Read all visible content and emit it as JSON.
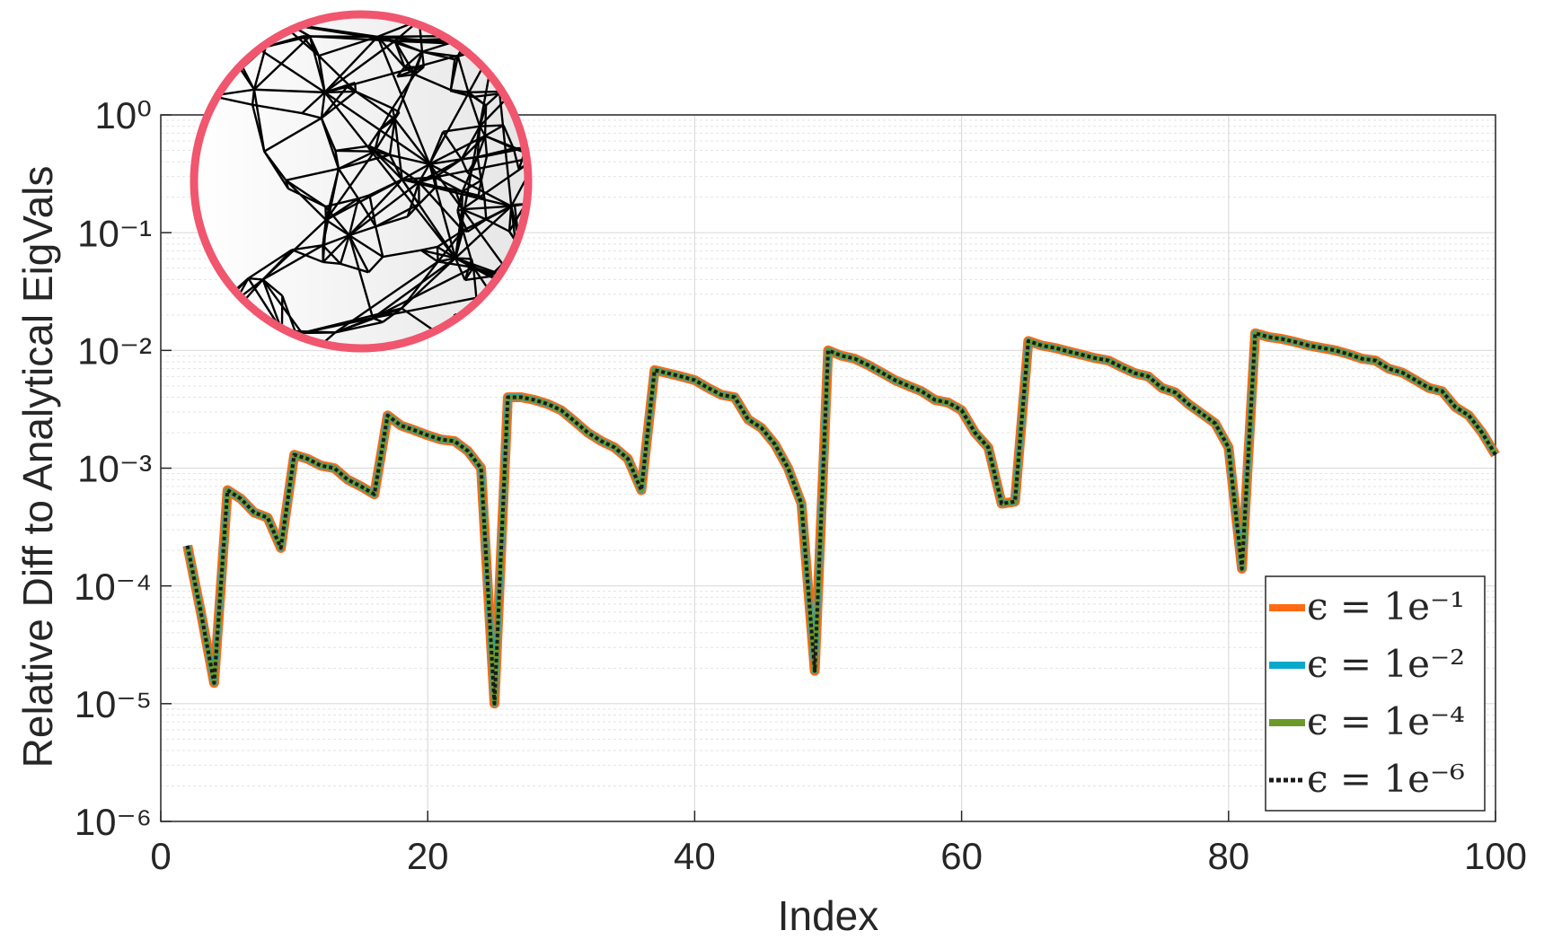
{
  "chart_data": {
    "type": "line",
    "xlabel": "Index",
    "ylabel": "Relative Diff to Analytical EigVals",
    "xlim": [
      0,
      100
    ],
    "xticks": [
      0,
      20,
      40,
      60,
      80,
      100
    ],
    "ylim": [
      1e-06,
      1
    ],
    "log_y": true,
    "grid": true,
    "legend": "lower right",
    "yticks": [
      {
        "value": 1e-06,
        "label": "10⁻⁶"
      },
      {
        "value": 1e-05,
        "label": "10⁻⁵"
      },
      {
        "value": 0.0001,
        "label": "10⁻⁴"
      },
      {
        "value": 0.001,
        "label": "10⁻³"
      },
      {
        "value": 0.01,
        "label": "10⁻²"
      },
      {
        "value": 0.1,
        "label": "10⁻¹"
      },
      {
        "value": 1,
        "label": "10⁰"
      }
    ],
    "x": [
      2,
      3,
      4,
      5,
      6,
      7,
      8,
      9,
      10,
      11,
      12,
      13,
      14,
      15,
      16,
      17,
      18,
      19,
      20,
      21,
      22,
      23,
      24,
      25,
      26,
      27,
      28,
      29,
      30,
      31,
      32,
      33,
      34,
      35,
      36,
      37,
      38,
      39,
      40,
      41,
      42,
      43,
      44,
      45,
      46,
      47,
      48,
      49,
      50,
      51,
      52,
      53,
      54,
      55,
      56,
      57,
      58,
      59,
      60,
      61,
      62,
      63,
      64,
      65,
      66,
      67,
      68,
      69,
      70,
      71,
      72,
      73,
      74,
      75,
      76,
      77,
      78,
      79,
      80,
      81,
      82,
      83,
      84,
      85,
      86,
      87,
      88,
      89,
      90,
      91,
      92,
      93,
      94,
      95,
      96,
      97,
      98,
      99,
      100
    ],
    "series": [
      {
        "name": "ϵ = 1e⁻¹",
        "color": "#ff6a13",
        "values": [
          0.00022,
          6e-05,
          1.5e-05,
          0.00065,
          0.00055,
          0.00042,
          0.00038,
          0.00021,
          0.0013,
          0.0012,
          0.00105,
          0.001,
          0.0008,
          0.0007,
          0.0006,
          0.0028,
          0.0023,
          0.0021,
          0.0019,
          0.00175,
          0.0017,
          0.0014,
          0.001,
          1e-05,
          0.004,
          0.004,
          0.0038,
          0.0035,
          0.0031,
          0.0025,
          0.002,
          0.0017,
          0.0015,
          0.0012,
          0.00065,
          0.0068,
          0.0064,
          0.006,
          0.0056,
          0.0048,
          0.0042,
          0.004,
          0.0026,
          0.0022,
          0.0016,
          0.001,
          0.0005,
          1.9e-05,
          0.01,
          0.009,
          0.0085,
          0.0075,
          0.0065,
          0.0056,
          0.005,
          0.0045,
          0.0038,
          0.0036,
          0.0031,
          0.002,
          0.0015,
          0.0005,
          0.00052,
          0.012,
          0.011,
          0.0105,
          0.0098,
          0.0092,
          0.0086,
          0.0082,
          0.0072,
          0.0064,
          0.006,
          0.0048,
          0.0044,
          0.0035,
          0.0029,
          0.0024,
          0.0015,
          0.00014,
          0.014,
          0.013,
          0.0125,
          0.0118,
          0.011,
          0.0105,
          0.01,
          0.0093,
          0.0085,
          0.0082,
          0.007,
          0.0065,
          0.0056,
          0.0048,
          0.0045,
          0.0033,
          0.0028,
          0.002,
          0.0013
        ]
      },
      {
        "name": "ϵ = 1e⁻²",
        "color": "#0aa9cc",
        "values": [
          0.00022,
          6e-05,
          1.5e-05,
          0.00065,
          0.00055,
          0.00042,
          0.00038,
          0.00021,
          0.0013,
          0.0012,
          0.00105,
          0.001,
          0.0008,
          0.0007,
          0.0006,
          0.0028,
          0.0023,
          0.0021,
          0.0019,
          0.00175,
          0.0017,
          0.0014,
          0.001,
          1e-05,
          0.004,
          0.004,
          0.0038,
          0.0035,
          0.0031,
          0.0025,
          0.002,
          0.0017,
          0.0015,
          0.0012,
          0.00065,
          0.0068,
          0.0064,
          0.006,
          0.0056,
          0.0048,
          0.0042,
          0.004,
          0.0026,
          0.0022,
          0.0016,
          0.001,
          0.0005,
          1.9e-05,
          0.01,
          0.009,
          0.0085,
          0.0075,
          0.0065,
          0.0056,
          0.005,
          0.0045,
          0.0038,
          0.0036,
          0.0031,
          0.002,
          0.0015,
          0.0005,
          0.00052,
          0.012,
          0.011,
          0.0105,
          0.0098,
          0.0092,
          0.0086,
          0.0082,
          0.0072,
          0.0064,
          0.006,
          0.0048,
          0.0044,
          0.0035,
          0.0029,
          0.0024,
          0.0015,
          0.00014,
          0.014,
          0.013,
          0.0125,
          0.0118,
          0.011,
          0.0105,
          0.01,
          0.0093,
          0.0085,
          0.0082,
          0.007,
          0.0065,
          0.0056,
          0.0048,
          0.0045,
          0.0033,
          0.0028,
          0.002,
          0.0013
        ]
      },
      {
        "name": "ϵ = 1e⁻⁴",
        "color": "#6b9a2b",
        "values": [
          0.00022,
          6e-05,
          1.5e-05,
          0.00065,
          0.00055,
          0.00042,
          0.00038,
          0.00021,
          0.0013,
          0.0012,
          0.00105,
          0.001,
          0.0008,
          0.0007,
          0.0006,
          0.0028,
          0.0023,
          0.0021,
          0.0019,
          0.00175,
          0.0017,
          0.0014,
          0.001,
          1e-05,
          0.004,
          0.004,
          0.0038,
          0.0035,
          0.0031,
          0.0025,
          0.002,
          0.0017,
          0.0015,
          0.0012,
          0.00065,
          0.0068,
          0.0064,
          0.006,
          0.0056,
          0.0048,
          0.0042,
          0.004,
          0.0026,
          0.0022,
          0.0016,
          0.001,
          0.0005,
          1.9e-05,
          0.01,
          0.009,
          0.0085,
          0.0075,
          0.0065,
          0.0056,
          0.005,
          0.0045,
          0.0038,
          0.0036,
          0.0031,
          0.002,
          0.0015,
          0.0005,
          0.00052,
          0.012,
          0.011,
          0.0105,
          0.0098,
          0.0092,
          0.0086,
          0.0082,
          0.0072,
          0.0064,
          0.006,
          0.0048,
          0.0044,
          0.0035,
          0.0029,
          0.0024,
          0.0015,
          0.00014,
          0.014,
          0.013,
          0.0125,
          0.0118,
          0.011,
          0.0105,
          0.01,
          0.0093,
          0.0085,
          0.0082,
          0.007,
          0.0065,
          0.0056,
          0.0048,
          0.0045,
          0.0033,
          0.0028,
          0.002,
          0.0013
        ]
      },
      {
        "name": "ϵ = 1e⁻⁶",
        "color": "#1a1a1a",
        "dashed": true,
        "values": [
          0.00022,
          6e-05,
          1.5e-05,
          0.00065,
          0.00055,
          0.00042,
          0.00038,
          0.00021,
          0.0013,
          0.0012,
          0.00105,
          0.001,
          0.0008,
          0.0007,
          0.0006,
          0.0028,
          0.0023,
          0.0021,
          0.0019,
          0.00175,
          0.0017,
          0.0014,
          0.001,
          1e-05,
          0.004,
          0.004,
          0.0038,
          0.0035,
          0.0031,
          0.0025,
          0.002,
          0.0017,
          0.0015,
          0.0012,
          0.00065,
          0.0068,
          0.0064,
          0.006,
          0.0056,
          0.0048,
          0.0042,
          0.004,
          0.0026,
          0.0022,
          0.0016,
          0.001,
          0.0005,
          1.9e-05,
          0.01,
          0.009,
          0.0085,
          0.0075,
          0.0065,
          0.0056,
          0.005,
          0.0045,
          0.0038,
          0.0036,
          0.0031,
          0.002,
          0.0015,
          0.0005,
          0.00052,
          0.012,
          0.011,
          0.0105,
          0.0098,
          0.0092,
          0.0086,
          0.0082,
          0.0072,
          0.0064,
          0.006,
          0.0048,
          0.0044,
          0.0035,
          0.0029,
          0.0024,
          0.0015,
          0.00014,
          0.014,
          0.013,
          0.0125,
          0.0118,
          0.011,
          0.0105,
          0.01,
          0.0093,
          0.0085,
          0.0082,
          0.007,
          0.0065,
          0.0056,
          0.0048,
          0.0045,
          0.0033,
          0.0028,
          0.002,
          0.0013
        ]
      }
    ]
  }
}
